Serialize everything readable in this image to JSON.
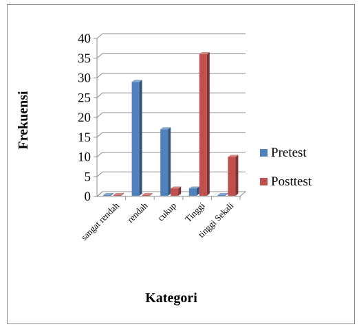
{
  "chart_data": {
    "type": "bar",
    "style": "3d-clustered-column",
    "categories": [
      "sangat rendah",
      "rendah",
      "cukup",
      "Tinggi",
      "tinggi Sekali"
    ],
    "series": [
      {
        "name": "Pretest",
        "values": [
          0,
          29,
          17,
          2,
          0
        ],
        "color": "#4f81bd"
      },
      {
        "name": "Posttest",
        "values": [
          0,
          0,
          2,
          36,
          10
        ],
        "color": "#c0504d"
      }
    ],
    "xlabel": "Kategori",
    "ylabel": "Frekuensi",
    "ylim": [
      0,
      40
    ],
    "yticks": [
      0,
      5,
      10,
      15,
      20,
      25,
      30,
      35,
      40
    ],
    "grid": true,
    "legend": "right"
  }
}
